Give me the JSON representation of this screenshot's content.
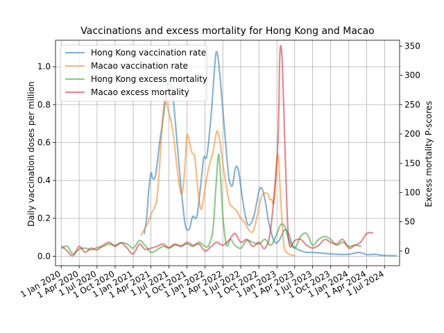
{
  "chart_data": {
    "type": "line",
    "title": "Vaccinations and excess mortality for Hong Kong and Macao",
    "xlabel": "",
    "ylabel_left": "Daily vaccination doses per million",
    "ylabel_right": "Excess mortality P-scores",
    "x_ticks": [
      "1 Jan 2020",
      "1 Apr 2020",
      "1 Jul 2020",
      "1 Oct 2020",
      "1 Jan 2021",
      "1 Apr 2021",
      "1 Jul 2021",
      "1 Oct 2021",
      "1 Jan 2022",
      "1 Apr 2022",
      "1 Jul 2022",
      "1 Oct 2022",
      "1 Jan 2023",
      "1 Apr 2023",
      "1 Jul 2023",
      "1 Oct 2023",
      "1 Jan 2024",
      "1 Apr 2024",
      "1 Jul 2024"
    ],
    "xlim": [
      "2019-12-03",
      "2024-09-15"
    ],
    "ylim_left": [
      -0.05,
      1.14
    ],
    "yticks_left": [
      0.0,
      0.2,
      0.4,
      0.6,
      0.8,
      1.0
    ],
    "ylim_right": [
      -25,
      360
    ],
    "yticks_right": [
      0,
      50,
      100,
      150,
      200,
      250,
      300,
      350
    ],
    "grid": true,
    "legend_position": "upper-left",
    "series": [
      {
        "name": "Hong Kong vaccination rate",
        "axis": "left",
        "color": "#1f77b4",
        "points": [
          [
            "2021-02-26",
            0.12
          ],
          [
            "2021-03-10",
            0.2
          ],
          [
            "2021-03-20",
            0.34
          ],
          [
            "2021-04-01",
            0.44
          ],
          [
            "2021-04-10",
            0.41
          ],
          [
            "2021-04-25",
            0.43
          ],
          [
            "2021-05-15",
            0.6
          ],
          [
            "2021-06-05",
            0.75
          ],
          [
            "2021-06-20",
            0.88
          ],
          [
            "2021-07-01",
            0.92
          ],
          [
            "2021-07-20",
            0.86
          ],
          [
            "2021-08-10",
            0.62
          ],
          [
            "2021-09-01",
            0.36
          ],
          [
            "2021-09-20",
            0.18
          ],
          [
            "2021-10-01",
            0.14
          ],
          [
            "2021-10-15",
            0.15
          ],
          [
            "2021-10-30",
            0.21
          ],
          [
            "2021-11-20",
            0.21
          ],
          [
            "2021-12-10",
            0.38
          ],
          [
            "2021-12-25",
            0.52
          ],
          [
            "2022-01-10",
            0.53
          ],
          [
            "2022-02-01",
            0.75
          ],
          [
            "2022-02-20",
            1.02
          ],
          [
            "2022-02-28",
            1.08
          ],
          [
            "2022-03-10",
            1.03
          ],
          [
            "2022-03-25",
            0.86
          ],
          [
            "2022-04-15",
            0.6
          ],
          [
            "2022-05-01",
            0.42
          ],
          [
            "2022-05-15",
            0.37
          ],
          [
            "2022-05-25",
            0.4
          ],
          [
            "2022-06-05",
            0.47
          ],
          [
            "2022-06-20",
            0.45
          ],
          [
            "2022-07-10",
            0.3
          ],
          [
            "2022-08-01",
            0.18
          ],
          [
            "2022-08-20",
            0.17
          ],
          [
            "2022-09-10",
            0.23
          ],
          [
            "2022-10-01",
            0.34
          ],
          [
            "2022-10-15",
            0.36
          ],
          [
            "2022-11-01",
            0.3
          ],
          [
            "2022-11-20",
            0.18
          ],
          [
            "2022-12-10",
            0.1
          ],
          [
            "2022-12-25",
            0.07
          ],
          [
            "2023-01-10",
            0.08
          ],
          [
            "2023-01-25",
            0.11
          ],
          [
            "2023-02-10",
            0.14
          ],
          [
            "2023-03-01",
            0.12
          ],
          [
            "2023-03-20",
            0.06
          ],
          [
            "2023-04-10",
            0.04
          ],
          [
            "2023-05-01",
            0.03
          ],
          [
            "2023-06-01",
            0.02
          ],
          [
            "2023-07-01",
            0.02
          ],
          [
            "2023-09-01",
            0.015
          ],
          [
            "2023-11-01",
            0.01
          ],
          [
            "2024-01-01",
            0.01
          ],
          [
            "2024-02-15",
            0.02
          ],
          [
            "2024-03-15",
            0.015
          ],
          [
            "2024-04-01",
            0.008
          ],
          [
            "2024-05-15",
            0.01
          ],
          [
            "2024-06-15",
            0.005
          ],
          [
            "2024-08-01",
            0.003
          ],
          [
            "2024-08-28",
            0.003
          ]
        ]
      },
      {
        "name": "Macao vaccination rate",
        "axis": "left",
        "color": "#ff7f0e",
        "points": [
          [
            "2021-02-10",
            0.11
          ],
          [
            "2021-02-25",
            0.14
          ],
          [
            "2021-03-15",
            0.17
          ],
          [
            "2021-04-01",
            0.22
          ],
          [
            "2021-04-20",
            0.26
          ],
          [
            "2021-05-01",
            0.3
          ],
          [
            "2021-05-15",
            0.48
          ],
          [
            "2021-06-01",
            0.75
          ],
          [
            "2021-06-15",
            0.85
          ],
          [
            "2021-06-25",
            0.78
          ],
          [
            "2021-07-10",
            0.72
          ],
          [
            "2021-07-25",
            0.63
          ],
          [
            "2021-08-10",
            0.48
          ],
          [
            "2021-08-25",
            0.36
          ],
          [
            "2021-09-05",
            0.33
          ],
          [
            "2021-09-15",
            0.4
          ],
          [
            "2021-09-25",
            0.55
          ],
          [
            "2021-10-01",
            0.64
          ],
          [
            "2021-10-10",
            0.62
          ],
          [
            "2021-10-25",
            0.55
          ],
          [
            "2021-11-10",
            0.52
          ],
          [
            "2021-11-25",
            0.35
          ],
          [
            "2021-12-10",
            0.25
          ],
          [
            "2021-12-20",
            0.28
          ],
          [
            "2022-01-01",
            0.36
          ],
          [
            "2022-01-20",
            0.47
          ],
          [
            "2022-02-10",
            0.55
          ],
          [
            "2022-02-25",
            0.64
          ],
          [
            "2022-03-05",
            0.66
          ],
          [
            "2022-03-15",
            0.62
          ],
          [
            "2022-04-01",
            0.49
          ],
          [
            "2022-04-20",
            0.36
          ],
          [
            "2022-05-05",
            0.28
          ],
          [
            "2022-05-20",
            0.26
          ],
          [
            "2022-06-10",
            0.24
          ],
          [
            "2022-07-01",
            0.2
          ],
          [
            "2022-07-20",
            0.18
          ],
          [
            "2022-08-10",
            0.14
          ],
          [
            "2022-09-01",
            0.13
          ],
          [
            "2022-09-20",
            0.2
          ],
          [
            "2022-10-10",
            0.3
          ],
          [
            "2022-10-25",
            0.33
          ],
          [
            "2022-11-15",
            0.33
          ],
          [
            "2022-11-25",
            0.3
          ],
          [
            "2022-12-05",
            0.3
          ],
          [
            "2022-12-15",
            0.28
          ],
          [
            "2022-12-25",
            0.4
          ],
          [
            "2023-01-03",
            0.53
          ],
          [
            "2023-01-10",
            0.5
          ],
          [
            "2023-01-20",
            0.3
          ],
          [
            "2023-02-05",
            0.06
          ],
          [
            "2023-02-20",
            0.02
          ],
          [
            "2023-03-20",
            0.005
          ],
          [
            "2023-04-01",
            0.005
          ]
        ]
      },
      {
        "name": "Hong Kong excess mortality",
        "axis": "right",
        "color": "#2ca02c",
        "points": [
          [
            "2020-01-05",
            5
          ],
          [
            "2020-02-01",
            8
          ],
          [
            "2020-03-01",
            -5
          ],
          [
            "2020-04-01",
            3
          ],
          [
            "2020-05-01",
            5
          ],
          [
            "2020-06-01",
            2
          ],
          [
            "2020-07-01",
            6
          ],
          [
            "2020-08-01",
            8
          ],
          [
            "2020-09-01",
            12
          ],
          [
            "2020-10-01",
            10
          ],
          [
            "2020-11-01",
            14
          ],
          [
            "2020-12-01",
            12
          ],
          [
            "2021-01-01",
            5
          ],
          [
            "2021-02-01",
            18
          ],
          [
            "2021-03-01",
            10
          ],
          [
            "2021-04-01",
            -2
          ],
          [
            "2021-05-01",
            2
          ],
          [
            "2021-06-01",
            8
          ],
          [
            "2021-07-01",
            5
          ],
          [
            "2021-08-01",
            10
          ],
          [
            "2021-09-01",
            9
          ],
          [
            "2021-10-01",
            12
          ],
          [
            "2021-11-01",
            8
          ],
          [
            "2021-12-01",
            15
          ],
          [
            "2022-01-01",
            8
          ],
          [
            "2022-01-20",
            10
          ],
          [
            "2022-02-10",
            38
          ],
          [
            "2022-02-25",
            110
          ],
          [
            "2022-03-10",
            165
          ],
          [
            "2022-03-20",
            130
          ],
          [
            "2022-04-01",
            60
          ],
          [
            "2022-04-20",
            10
          ],
          [
            "2022-05-10",
            20
          ],
          [
            "2022-06-01",
            10
          ],
          [
            "2022-07-01",
            5
          ],
          [
            "2022-08-01",
            18
          ],
          [
            "2022-09-01",
            15
          ],
          [
            "2022-10-01",
            12
          ],
          [
            "2022-11-01",
            20
          ],
          [
            "2022-12-01",
            10
          ],
          [
            "2023-01-01",
            30
          ],
          [
            "2023-01-20",
            45
          ],
          [
            "2023-02-10",
            42
          ],
          [
            "2023-03-01",
            20
          ],
          [
            "2023-04-01",
            5
          ],
          [
            "2023-05-01",
            25
          ],
          [
            "2023-06-01",
            30
          ],
          [
            "2023-07-01",
            10
          ],
          [
            "2023-08-01",
            20
          ],
          [
            "2023-09-01",
            25
          ],
          [
            "2023-10-01",
            20
          ],
          [
            "2023-11-01",
            10
          ],
          [
            "2023-12-01",
            15
          ],
          [
            "2024-01-01",
            8
          ],
          [
            "2024-02-01",
            10
          ],
          [
            "2024-03-01",
            8
          ]
        ]
      },
      {
        "name": "Macao excess mortality",
        "axis": "right",
        "color": "#d62728",
        "points": [
          [
            "2020-01-05",
            8
          ],
          [
            "2020-02-01",
            0
          ],
          [
            "2020-03-01",
            -8
          ],
          [
            "2020-04-01",
            8
          ],
          [
            "2020-05-01",
            -2
          ],
          [
            "2020-06-01",
            5
          ],
          [
            "2020-07-01",
            2
          ],
          [
            "2020-08-01",
            10
          ],
          [
            "2020-09-01",
            15
          ],
          [
            "2020-10-01",
            8
          ],
          [
            "2020-11-01",
            14
          ],
          [
            "2020-12-01",
            5
          ],
          [
            "2021-01-01",
            -5
          ],
          [
            "2021-02-01",
            12
          ],
          [
            "2021-03-01",
            3
          ],
          [
            "2021-04-01",
            5
          ],
          [
            "2021-05-01",
            8
          ],
          [
            "2021-06-01",
            12
          ],
          [
            "2021-07-01",
            6
          ],
          [
            "2021-08-01",
            12
          ],
          [
            "2021-09-01",
            8
          ],
          [
            "2021-10-01",
            15
          ],
          [
            "2021-11-01",
            10
          ],
          [
            "2021-12-01",
            12
          ],
          [
            "2022-01-01",
            0
          ],
          [
            "2022-02-01",
            8
          ],
          [
            "2022-03-01",
            15
          ],
          [
            "2022-04-01",
            10
          ],
          [
            "2022-05-01",
            18
          ],
          [
            "2022-06-01",
            30
          ],
          [
            "2022-07-01",
            15
          ],
          [
            "2022-08-01",
            20
          ],
          [
            "2022-09-01",
            8
          ],
          [
            "2022-10-01",
            15
          ],
          [
            "2022-11-01",
            5
          ],
          [
            "2022-12-01",
            40
          ],
          [
            "2023-01-05",
            180
          ],
          [
            "2023-01-15",
            330
          ],
          [
            "2023-01-25",
            340
          ],
          [
            "2023-02-05",
            240
          ],
          [
            "2023-02-20",
            80
          ],
          [
            "2023-03-05",
            10
          ],
          [
            "2023-04-01",
            18
          ],
          [
            "2023-05-01",
            20
          ],
          [
            "2023-06-01",
            10
          ],
          [
            "2023-07-01",
            5
          ],
          [
            "2023-08-01",
            10
          ],
          [
            "2023-09-01",
            20
          ],
          [
            "2023-10-01",
            15
          ],
          [
            "2023-11-01",
            12
          ],
          [
            "2023-12-01",
            20
          ],
          [
            "2024-01-01",
            5
          ],
          [
            "2024-02-01",
            10
          ],
          [
            "2024-03-01",
            15
          ],
          [
            "2024-04-01",
            30
          ],
          [
            "2024-05-01",
            31
          ]
        ]
      }
    ]
  }
}
